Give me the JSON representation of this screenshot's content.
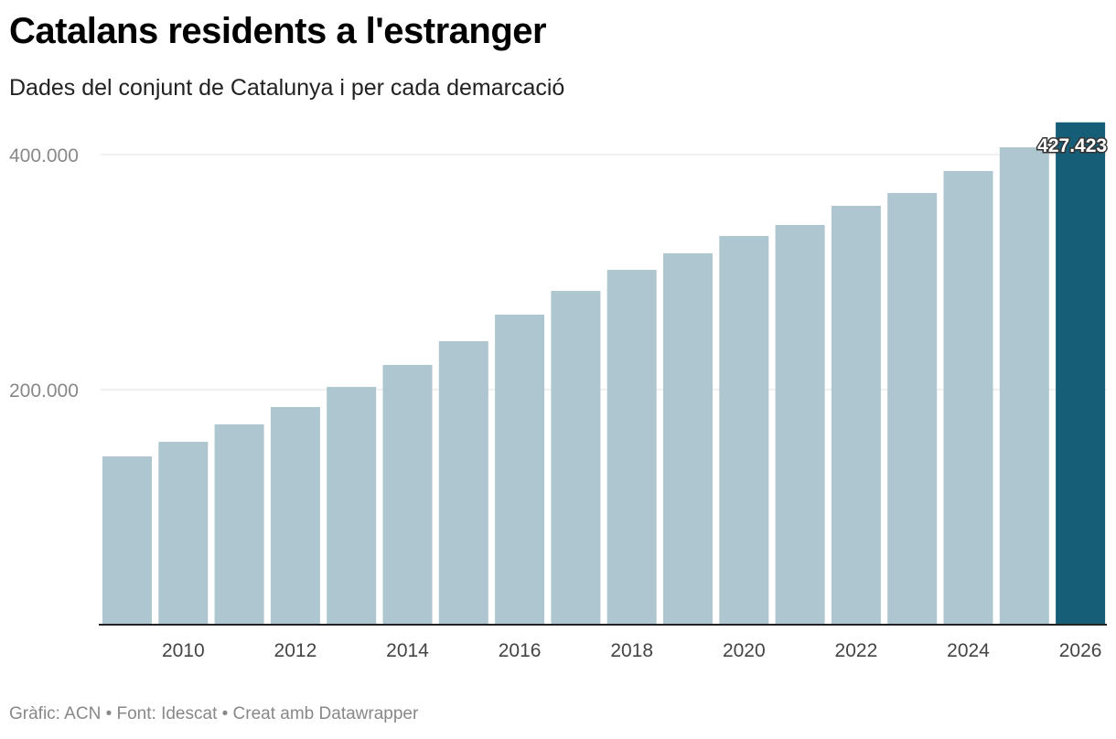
{
  "chart_data": {
    "type": "bar",
    "title": "Catalans residents a l'estranger",
    "subtitle": "Dades del conjunt de Catalunya i per cada demarcació",
    "categories": [
      "2009",
      "2010",
      "2011",
      "2012",
      "2013",
      "2014",
      "2015",
      "2016",
      "2017",
      "2018",
      "2019",
      "2020",
      "2021",
      "2022",
      "2023",
      "2024",
      "2025",
      "2026"
    ],
    "values": [
      143200,
      155600,
      170400,
      185200,
      202300,
      221000,
      241200,
      263800,
      284000,
      301900,
      316000,
      330700,
      340100,
      356400,
      367300,
      386000,
      406200,
      427423
    ],
    "highlight_index": 17,
    "highlight_label": "427.423",
    "yticks": [
      {
        "value": 200000,
        "label": "200.000"
      },
      {
        "value": 400000,
        "label": "400.000"
      }
    ],
    "xtick_labels": [
      "2010",
      "2012",
      "2014",
      "2016",
      "2018",
      "2020",
      "2022",
      "2024",
      "2026"
    ],
    "ylim": [
      0,
      430000
    ],
    "xlabel": "",
    "ylabel": "",
    "grid": true,
    "colors": {
      "bar": "#aec6cf",
      "highlight": "#165e78"
    }
  },
  "footer": "Gràfic: ACN • Font: Idescat • Creat amb Datawrapper"
}
